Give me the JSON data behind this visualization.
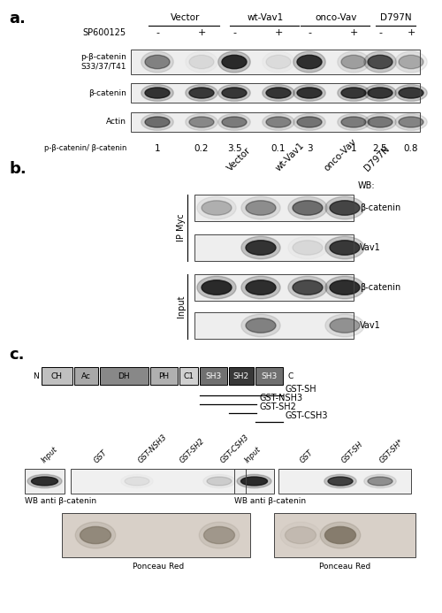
{
  "panel_a": {
    "label": "a.",
    "columns": [
      "Vector",
      "wt-Vav1",
      "onco-Vav",
      "D797N"
    ],
    "sp600125_signs": [
      "-",
      "+",
      "-",
      "+",
      "-",
      "+",
      "-",
      "+"
    ],
    "row_labels": [
      "p-β-catenin\nS33/37/T41",
      "β-catenin",
      "Actin"
    ],
    "ratio_label": "p-β-catenin/ β-catenin",
    "ratios": [
      "1",
      "0.2",
      "3.5",
      "0.1",
      "3",
      "1",
      "2.5",
      "0.8"
    ],
    "band_intensities": {
      "p_beta": [
        0.45,
        0.08,
        0.9,
        0.07,
        0.88,
        0.32,
        0.72,
        0.28
      ],
      "beta": [
        0.85,
        0.82,
        0.83,
        0.84,
        0.86,
        0.83,
        0.84,
        0.82
      ],
      "actin": [
        0.55,
        0.42,
        0.48,
        0.45,
        0.52,
        0.48,
        0.5,
        0.44
      ]
    }
  },
  "panel_b": {
    "label": "b.",
    "columns": [
      "Vector",
      "wt-Vav1",
      "onco-Vav",
      "D797N"
    ],
    "ip_rows": [
      {
        "label": "β-catenin",
        "bands": [
          0.25,
          0.4,
          0.55,
          0.75
        ]
      },
      {
        "label": "Vav1",
        "bands": [
          0.0,
          0.85,
          0.08,
          0.82
        ]
      }
    ],
    "input_rows": [
      {
        "label": "β-catenin",
        "bands": [
          0.9,
          0.88,
          0.72,
          0.88
        ]
      },
      {
        "label": "Vav1",
        "bands": [
          0.0,
          0.45,
          0.0,
          0.38
        ]
      }
    ]
  },
  "panel_c": {
    "label": "c.",
    "domains": [
      {
        "name": "N",
        "xf": 0.0,
        "wf": 0.028,
        "color": "none",
        "tc": "black",
        "border": false
      },
      {
        "name": "CH",
        "xf": 0.03,
        "wf": 0.09,
        "color": "#c0c0c0",
        "tc": "black",
        "border": true
      },
      {
        "name": "Ac",
        "xf": 0.125,
        "wf": 0.07,
        "color": "#a8a8a8",
        "tc": "black",
        "border": true
      },
      {
        "name": "DH",
        "xf": 0.2,
        "wf": 0.14,
        "color": "#888888",
        "tc": "black",
        "border": true
      },
      {
        "name": "PH",
        "xf": 0.345,
        "wf": 0.08,
        "color": "#b0b0b0",
        "tc": "black",
        "border": true
      },
      {
        "name": "C1",
        "xf": 0.43,
        "wf": 0.055,
        "color": "#d0d0d0",
        "tc": "black",
        "border": true
      },
      {
        "name": "SH3",
        "xf": 0.49,
        "wf": 0.08,
        "color": "#707070",
        "tc": "white",
        "border": true
      },
      {
        "name": "SH2",
        "xf": 0.575,
        "wf": 0.07,
        "color": "#383838",
        "tc": "white",
        "border": true
      },
      {
        "name": "SH3",
        "xf": 0.65,
        "wf": 0.08,
        "color": "#707070",
        "tc": "white",
        "border": true
      },
      {
        "name": "C",
        "xf": 0.74,
        "wf": 0.028,
        "color": "none",
        "tc": "black",
        "border": false
      }
    ],
    "gst_lines": [
      {
        "label": "GST-SH",
        "xf1": 0.49,
        "xf2": 0.73
      },
      {
        "label": "GST-NSH3",
        "xf1": 0.49,
        "xf2": 0.655
      },
      {
        "label": "GST-SH2",
        "xf1": 0.575,
        "xf2": 0.655
      },
      {
        "label": "GST-CSH3",
        "xf1": 0.65,
        "xf2": 0.73
      }
    ],
    "left_experiment": {
      "input_band": 0.88,
      "col_labels": [
        "GST",
        "GST-NSH3",
        "GST-SH2",
        "GST-CSH3"
      ],
      "wb_bands": [
        0.0,
        0.06,
        0.0,
        0.14
      ],
      "ponceau_bands": [
        0.72,
        0.0,
        0.0,
        0.55
      ],
      "ponceau_color": "#7a7060"
    },
    "right_experiment": {
      "input_band": 0.9,
      "col_labels": [
        "GST",
        "GST-SH",
        "GST-SH*"
      ],
      "wb_bands": [
        0.0,
        0.78,
        0.4
      ],
      "ponceau_bands": [
        0.2,
        0.88,
        0.0
      ],
      "ponceau_color": "#7a7060"
    }
  }
}
